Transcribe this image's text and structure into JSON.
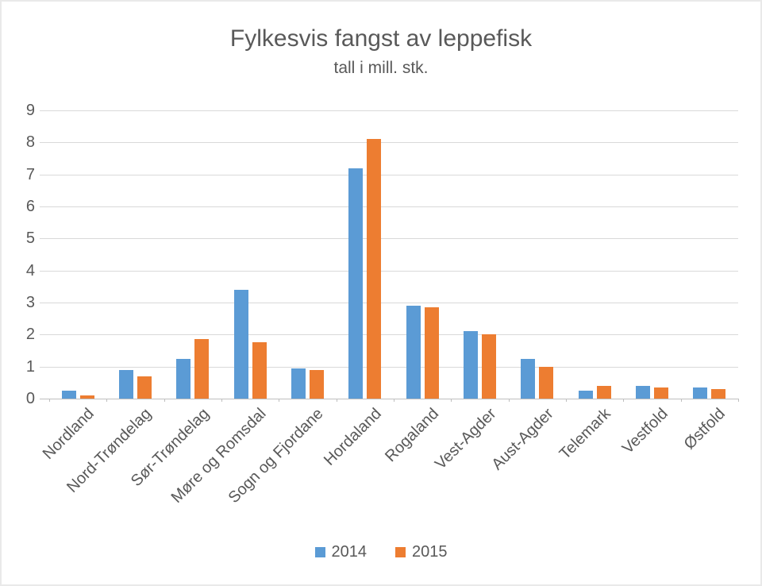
{
  "chart_data": {
    "type": "bar",
    "title": "Fylkesvis fangst av leppefisk",
    "subtitle": "tall i mill. stk.",
    "categories": [
      "Nordland",
      "Nord-Trøndelag",
      "Sør-Trøndelag",
      "Møre og Romsdal",
      "Sogn og Fjordane",
      "Hordaland",
      "Rogaland",
      "Vest-Agder",
      "Aust-Agder",
      "Telemark",
      "Vestfold",
      "Østfold"
    ],
    "series": [
      {
        "name": "2014",
        "color": "#5B9BD5",
        "values": [
          0.25,
          0.9,
          1.25,
          3.4,
          0.95,
          7.2,
          2.9,
          2.1,
          1.25,
          0.25,
          0.4,
          0.35
        ]
      },
      {
        "name": "2015",
        "color": "#ED7D31",
        "values": [
          0.1,
          0.7,
          1.85,
          1.75,
          0.9,
          8.1,
          2.85,
          2.0,
          1.0,
          0.4,
          0.35,
          0.3
        ]
      }
    ],
    "xlabel": "",
    "ylabel": "",
    "ylim": [
      0,
      9
    ],
    "yticks": [
      0,
      1,
      2,
      3,
      4,
      5,
      6,
      7,
      8,
      9
    ],
    "grid": true,
    "legend_position": "bottom"
  },
  "colors": {
    "text": "#595959",
    "gridline": "#D9D9D9",
    "axis_line": "#BFBFBF",
    "background": "#FFFFFF"
  }
}
